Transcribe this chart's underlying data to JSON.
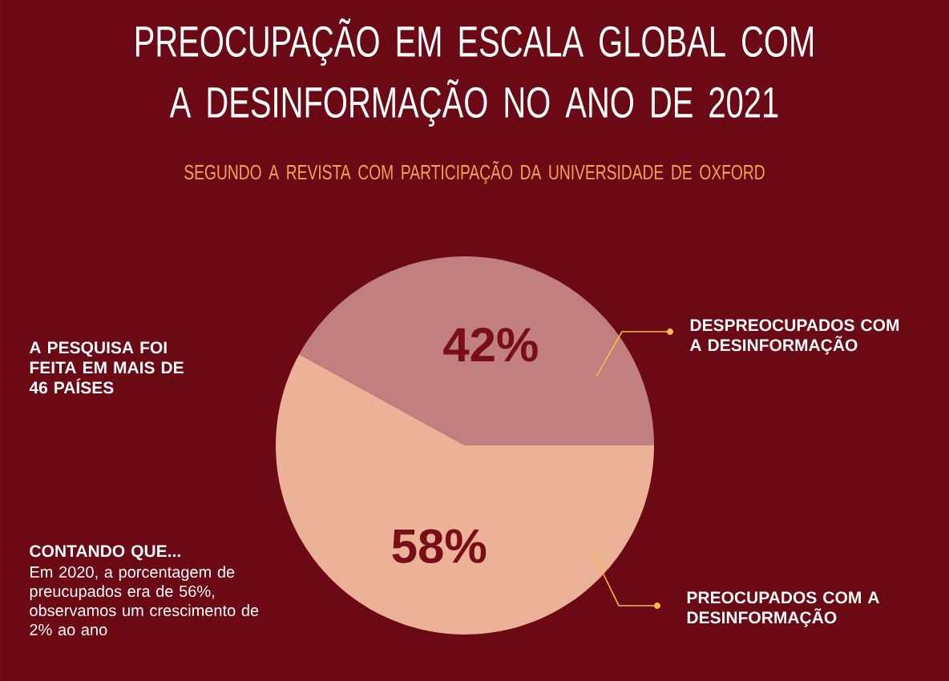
{
  "chart_data": {
    "type": "pie",
    "title": "PREOCUPAÇÃO EM ESCALA GLOBAL COM A DESINFORMAÇÃO NO ANO DE 2021",
    "subtitle": "SEGUNDO A REVISTA COM PARTICIPAÇÃO DA UNIVERSIDADE DE OXFORD",
    "categories": [
      "DESPREOCUPADOS COM A DESINFORMAÇÃO",
      "PREOCUPADOS COM A DESINFORMAÇÃO"
    ],
    "values": [
      42,
      58
    ],
    "colors": [
      "#c27f7f",
      "#ebb298"
    ],
    "value_labels": [
      "42%",
      "58%"
    ],
    "annotations": [
      "A PESQUISA FOI FEITA EM MAIS DE 46 PAÍSES",
      "CONTANDO QUE...",
      "Em 2020, a porcentagem de preucupados era de 56%, observamos um crescimento de 2% ao ano"
    ]
  }
}
